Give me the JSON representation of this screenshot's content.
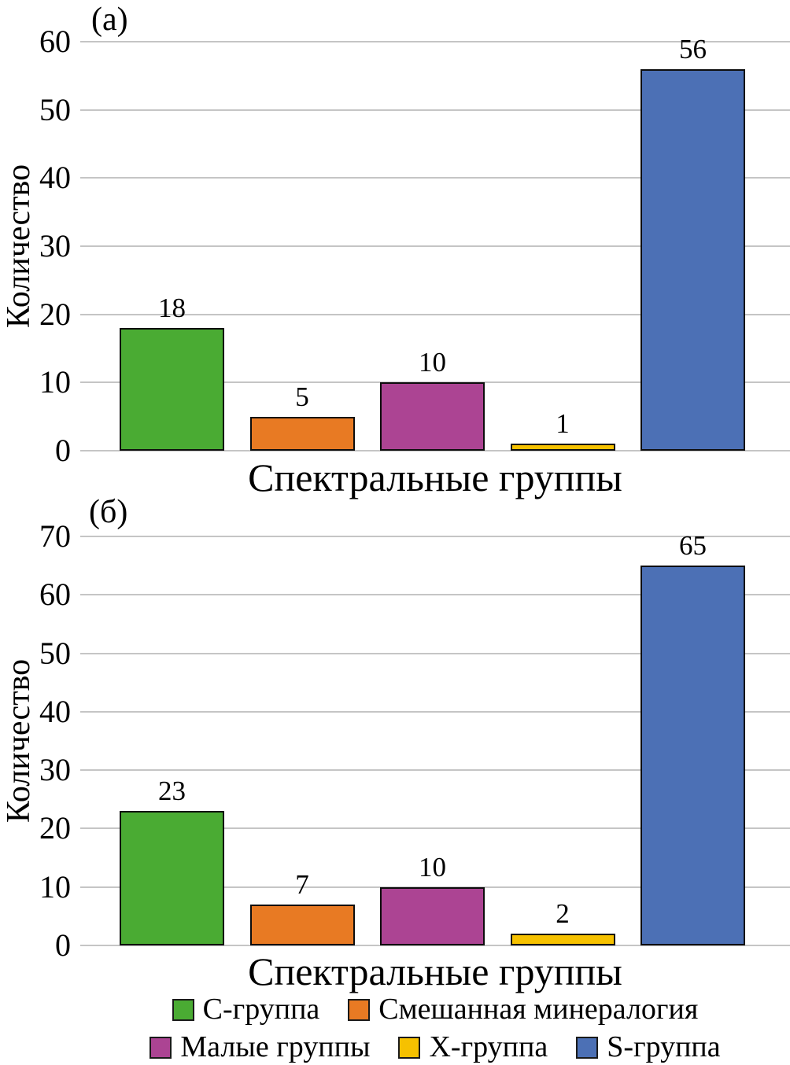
{
  "chart_data": [
    {
      "type": "bar",
      "panel_label": "(а)",
      "xlabel": "Спектральные группы",
      "ylabel": "Количество",
      "categories": [
        "C-группа",
        "Смешанная минералогия",
        "Малые группы",
        "X-группа",
        "S-группа"
      ],
      "category_keys": [
        "c-group",
        "mixed-mineralogy",
        "small-groups",
        "x-group",
        "s-group"
      ],
      "values": [
        18,
        5,
        10,
        1,
        56
      ],
      "bar_colors": [
        "#4AAB33",
        "#E87A23",
        "#AC4493",
        "#F6C100",
        "#4C70B5"
      ],
      "ylim": [
        0,
        60
      ],
      "yticks": [
        0,
        10,
        20,
        30,
        40,
        50,
        60
      ],
      "grid": true
    },
    {
      "type": "bar",
      "panel_label": "(б)",
      "xlabel": "Спектральные группы",
      "ylabel": "Количество",
      "categories": [
        "C-группа",
        "Смешанная минералогия",
        "Малые группы",
        "X-группа",
        "S-группа"
      ],
      "category_keys": [
        "c-group",
        "mixed-mineralogy",
        "small-groups",
        "x-group",
        "s-group"
      ],
      "values": [
        23,
        7,
        10,
        2,
        65
      ],
      "bar_colors": [
        "#4AAB33",
        "#E87A23",
        "#AC4493",
        "#F6C100",
        "#4C70B5"
      ],
      "ylim": [
        0,
        70
      ],
      "yticks": [
        0,
        10,
        20,
        30,
        40,
        50,
        60,
        70
      ],
      "grid": true
    }
  ],
  "legend": {
    "position": "bottom",
    "rows": [
      [
        {
          "key": "c-group",
          "label": "C-группа",
          "color": "#4AAB33"
        },
        {
          "key": "mixed-mineralogy",
          "label": "Смешанная минералогия",
          "color": "#E87A23"
        }
      ],
      [
        {
          "key": "small-groups",
          "label": "Малые группы",
          "color": "#AC4493"
        },
        {
          "key": "x-group",
          "label": "X-группа",
          "color": "#F6C100"
        },
        {
          "key": "s-group",
          "label": "S-группа",
          "color": "#4C70B5"
        }
      ]
    ]
  },
  "colors": {
    "gridline": "#c5c5c5",
    "bar_border": "#0d0d0d",
    "text": "#000000",
    "background": "#ffffff"
  }
}
